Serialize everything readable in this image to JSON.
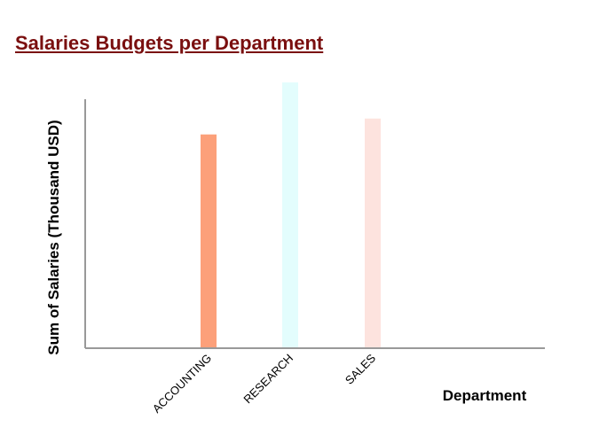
{
  "colors": {
    "title": "#7a0f0f",
    "accounting": "#fca07a",
    "research": "#e3fdfd",
    "sales": "#fde3de",
    "axis": "#999999"
  },
  "chart_data": {
    "type": "bar",
    "title": "Salaries Budgets per Department",
    "xlabel": "Department",
    "ylabel": "Sum of Salaries (Thousand USD)",
    "categories": [
      "ACCOUNTING",
      "RESEARCH",
      "SALES"
    ],
    "values": [
      8.75,
      10.88,
      9.4
    ],
    "ylim": [
      0,
      10.88
    ],
    "grid": false,
    "legend": "none",
    "y_tick_labels_shown": false
  }
}
